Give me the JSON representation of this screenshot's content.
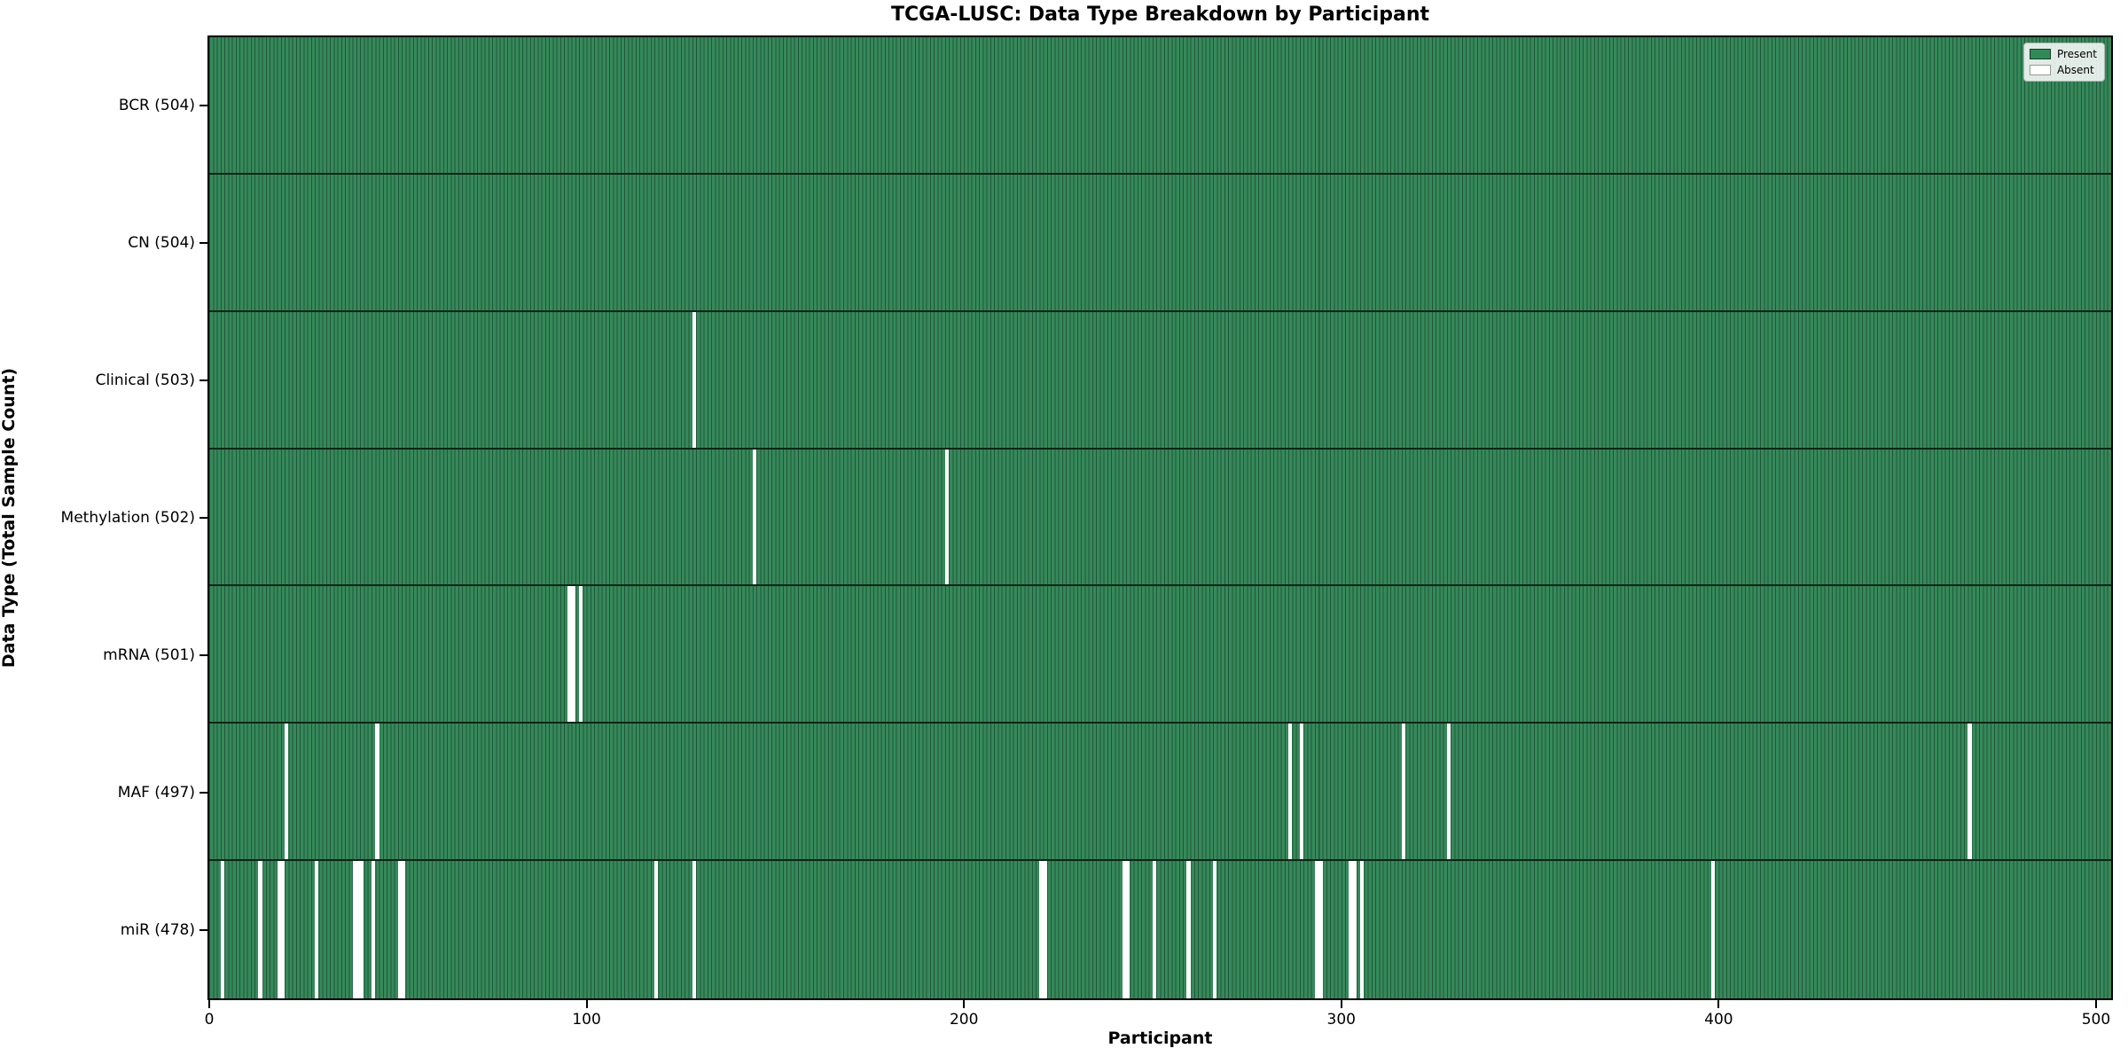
{
  "chart_data": {
    "type": "heatmap",
    "title": "TCGA-LUSC: Data Type Breakdown by Participant",
    "xlabel": "Participant",
    "ylabel": "Data Type (Total Sample Count)",
    "x_ticks": [
      0,
      100,
      200,
      300,
      400,
      500
    ],
    "xlim": [
      0,
      504
    ],
    "n_participants": 504,
    "grid": false,
    "colors": {
      "present": "#36895a",
      "absent": "#ffffff",
      "bar_edge": "#20573a",
      "row_divider": "#0d2417"
    },
    "legend": {
      "position": "upper right",
      "entries": [
        {
          "label": "Present",
          "color": "#2e8b57",
          "edge": "#1c3b2a"
        },
        {
          "label": "Absent",
          "color": "#ffffff",
          "edge": "#999999"
        }
      ]
    },
    "rows": [
      {
        "key": "bcr",
        "label": "BCR (504)",
        "data_type": "BCR",
        "present_count": 504,
        "absent_participants": []
      },
      {
        "key": "cn",
        "label": "CN (504)",
        "data_type": "CN",
        "present_count": 504,
        "absent_participants": []
      },
      {
        "key": "clinical",
        "label": "Clinical (503)",
        "data_type": "Clinical",
        "present_count": 503,
        "absent_participants": [
          128
        ]
      },
      {
        "key": "methylation",
        "label": "Methylation (502)",
        "data_type": "Methylation",
        "present_count": 502,
        "absent_participants": [
          144,
          195
        ]
      },
      {
        "key": "mrna",
        "label": "mRNA (501)",
        "data_type": "mRNA",
        "present_count": 501,
        "absent_participants": [
          95,
          96,
          98
        ]
      },
      {
        "key": "maf",
        "label": "MAF (497)",
        "data_type": "MAF",
        "present_count": 497,
        "absent_participants": [
          20,
          44,
          286,
          289,
          316,
          328,
          466
        ]
      },
      {
        "key": "mir",
        "label": "miR (478)",
        "data_type": "miR",
        "present_count": 478,
        "absent_participants": [
          3,
          13,
          18,
          19,
          28,
          38,
          39,
          40,
          43,
          50,
          51,
          118,
          128,
          220,
          221,
          242,
          243,
          250,
          259,
          266,
          293,
          294,
          302,
          303,
          305,
          398
        ]
      }
    ]
  }
}
